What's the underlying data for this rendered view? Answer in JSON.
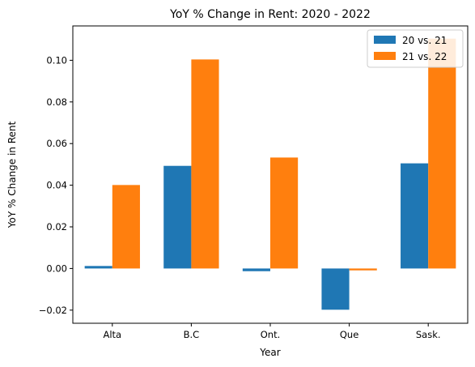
{
  "chart_data": {
    "type": "bar",
    "title": "YoY % Change in Rent: 2020 - 2022",
    "xlabel": "Year",
    "ylabel": "YoY % Change in Rent",
    "categories": [
      "Alta",
      "B.C",
      "Ont.",
      "Que",
      "Sask."
    ],
    "series": [
      {
        "name": "20 vs. 21",
        "color": "#1f77b4",
        "values": [
          0.0012,
          0.0493,
          -0.0013,
          -0.0198,
          0.0505
        ]
      },
      {
        "name": "21 vs. 22",
        "color": "#ff7f0e",
        "values": [
          0.0401,
          0.1004,
          0.0533,
          -0.0009,
          0.1104
        ]
      }
    ],
    "ylim": [
      -0.0263,
      0.1165
    ],
    "yticks": [
      -0.02,
      0.0,
      0.02,
      0.04,
      0.06,
      0.08,
      0.1
    ],
    "ytick_labels": [
      "−0.02",
      "0.00",
      "0.02",
      "0.04",
      "0.06",
      "0.08",
      "0.10"
    ],
    "grid": false,
    "legend_position": "top-right"
  }
}
